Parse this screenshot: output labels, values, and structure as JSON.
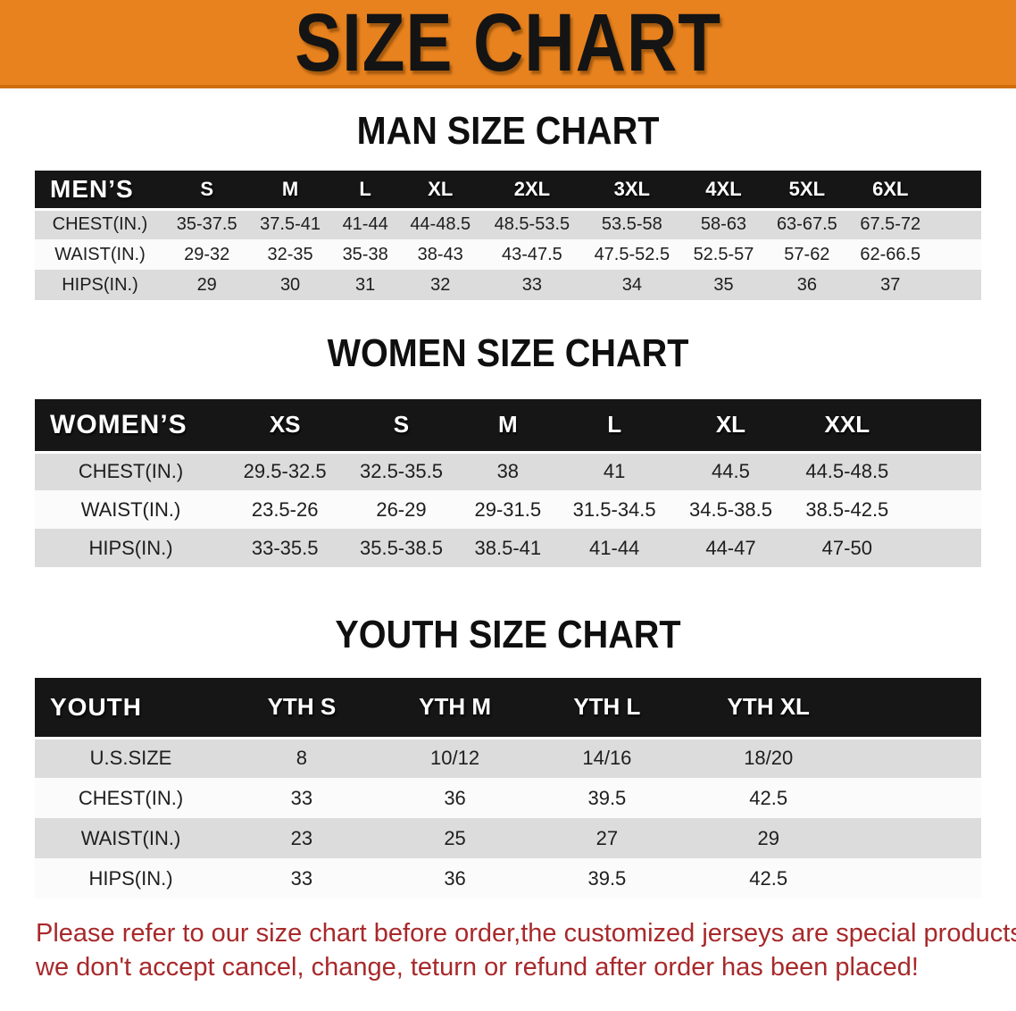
{
  "banner": {
    "title": "SIZE CHART",
    "background_color": "#E8821E",
    "text_color": "#141414"
  },
  "sections": [
    {
      "heading": "MAN SIZE CHART",
      "table": {
        "header_label": "MEN’S",
        "columns": [
          "S",
          "M",
          "L",
          "XL",
          "2XL",
          "3XL",
          "4XL",
          "5XL",
          "6XL"
        ],
        "rows": [
          {
            "label": "CHEST(IN.)",
            "values": [
              "35-37.5",
              "37.5-41",
              "41-44",
              "44-48.5",
              "48.5-53.5",
              "53.5-58",
              "58-63",
              "63-67.5",
              "67.5-72"
            ]
          },
          {
            "label": "WAIST(IN.)",
            "values": [
              "29-32",
              "32-35",
              "35-38",
              "38-43",
              "43-47.5",
              "47.5-52.5",
              "52.5-57",
              "57-62",
              "62-66.5"
            ]
          },
          {
            "label": "HIPS(IN.)",
            "values": [
              "29",
              "30",
              "31",
              "32",
              "33",
              "34",
              "35",
              "36",
              "37"
            ]
          }
        ]
      }
    },
    {
      "heading": "WOMEN SIZE CHART",
      "table": {
        "header_label": "WOMEN’S",
        "columns": [
          "XS",
          "S",
          "M",
          "L",
          "XL",
          "XXL"
        ],
        "rows": [
          {
            "label": "CHEST(IN.)",
            "values": [
              "29.5-32.5",
              "32.5-35.5",
              "38",
              "41",
              "44.5",
              "44.5-48.5"
            ]
          },
          {
            "label": "WAIST(IN.)",
            "values": [
              "23.5-26",
              "26-29",
              "29-31.5",
              "31.5-34.5",
              "34.5-38.5",
              "38.5-42.5"
            ]
          },
          {
            "label": "HIPS(IN.)",
            "values": [
              "33-35.5",
              "35.5-38.5",
              "38.5-41",
              "41-44",
              "44-47",
              "47-50"
            ]
          }
        ]
      }
    },
    {
      "heading": "YOUTH SIZE CHART",
      "table": {
        "header_label": "YOUTH",
        "columns": [
          "YTH S",
          "YTH M",
          "YTH L",
          "YTH XL"
        ],
        "rows": [
          {
            "label": "U.S.SIZE",
            "values": [
              "8",
              "10/12",
              "14/16",
              "18/20"
            ]
          },
          {
            "label": "CHEST(IN.)",
            "values": [
              "33",
              "36",
              "39.5",
              "42.5"
            ]
          },
          {
            "label": "WAIST(IN.)",
            "values": [
              "23",
              "25",
              "27",
              "29"
            ]
          },
          {
            "label": "HIPS(IN.)",
            "values": [
              "33",
              "36",
              "39.5",
              "42.5"
            ]
          }
        ]
      }
    }
  ],
  "disclaimer": {
    "text_color": "#A8292B",
    "lines": [
      "Please refer to our size chart before order,the customized jerseys are special products,",
      "we don't accept cancel, change, teturn or refund after order has been placed!"
    ]
  },
  "colors": {
    "table_header_bg": "#161616",
    "table_header_text": "#ffffff",
    "stripe_gray": "#dcdcdc",
    "stripe_white": "#fbfbfb"
  }
}
